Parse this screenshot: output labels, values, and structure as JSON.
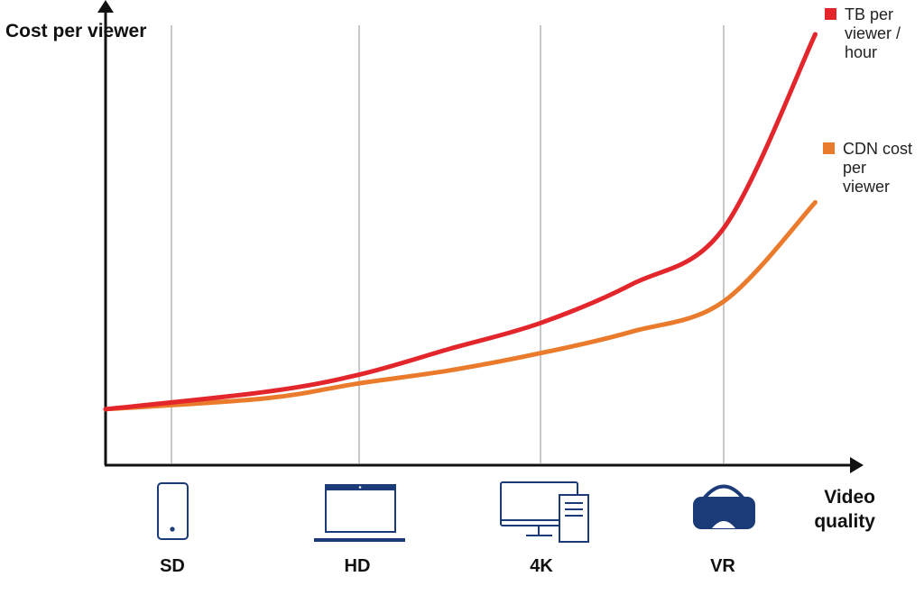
{
  "chart_data": {
    "type": "line",
    "xlabel": "Video quality",
    "ylabel": "Cost per viewer",
    "categories": [
      "SD",
      "HD",
      "4K",
      "VR"
    ],
    "series": [
      {
        "name": "TB per viewer / hour",
        "color": "#e3262b",
        "x": [
          0,
          0.5,
          1,
          1.5,
          2,
          2.5,
          3,
          3.5
        ],
        "values": [
          0.13,
          0.17,
          0.21,
          0.27,
          0.33,
          0.42,
          0.55,
          1.0
        ]
      },
      {
        "name": "CDN cost per viewer",
        "color": "#ea7b2c",
        "x": [
          0,
          0.5,
          1,
          1.5,
          2,
          2.5,
          3,
          3.5
        ],
        "values": [
          0.13,
          0.155,
          0.19,
          0.22,
          0.26,
          0.31,
          0.38,
          0.61
        ]
      }
    ],
    "grid": true,
    "legend": "right"
  },
  "icons": [
    "smartphone-icon",
    "laptop-icon",
    "desktop-computer-icon",
    "vr-headset-icon"
  ],
  "icon_color": "#1a3a78",
  "axis_color": "#111111",
  "grid_color": "#c8c8c8"
}
